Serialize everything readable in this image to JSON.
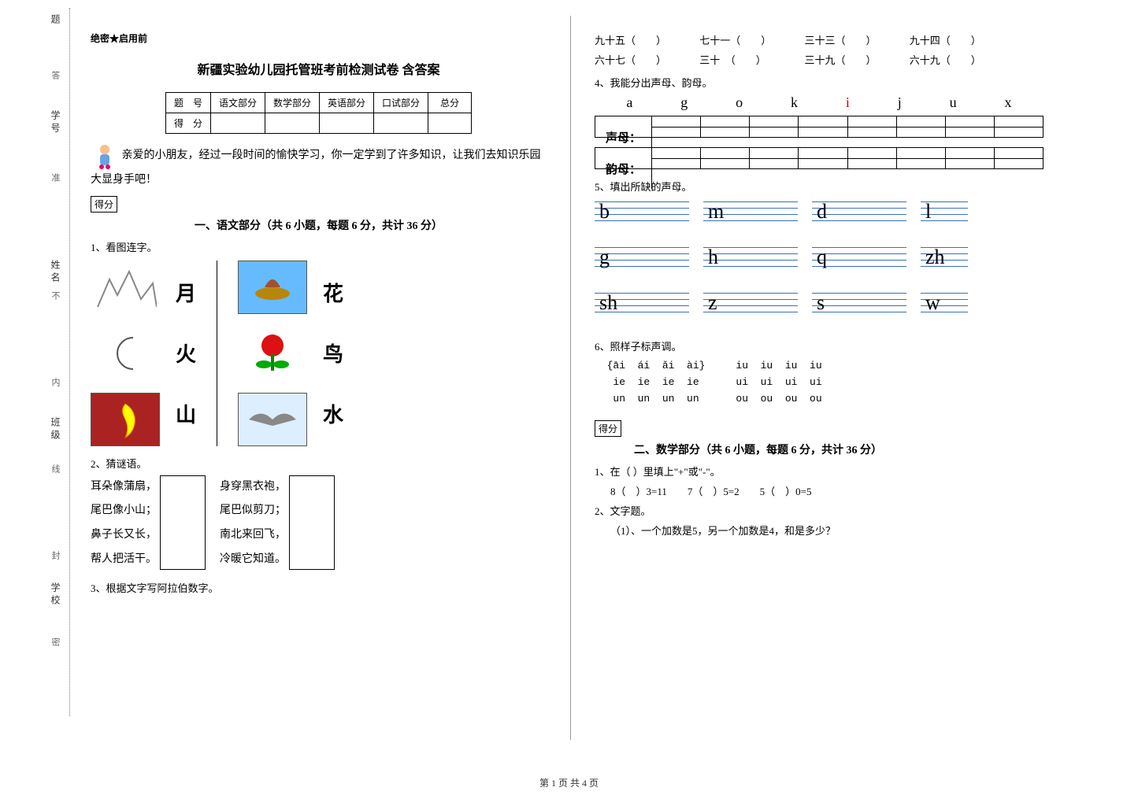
{
  "binding": {
    "labels": [
      "题",
      "答",
      "学号",
      "准",
      "姓名",
      "不",
      "内",
      "班级",
      "线",
      "封",
      "学校",
      "密"
    ]
  },
  "header": {
    "secret": "绝密★启用前",
    "title": "新疆实验幼儿园托管班考前检测试卷 含答案",
    "score_cols": [
      "题　号",
      "语文部分",
      "数学部分",
      "英语部分",
      "口试部分",
      "总分"
    ],
    "score_row2": "得　分",
    "intro": "亲爱的小朋友，经过一段时间的愉快学习，你一定学到了许多知识，让我们去知识乐园大显身手吧！",
    "defen": "得分"
  },
  "section1": {
    "head": "一、语文部分（共 6 小题，每题 6 分，共计 36 分）",
    "q1": "1、看图连字。",
    "match_chars_left": [
      "月",
      "火",
      "山"
    ],
    "match_chars_right": [
      "花",
      "鸟",
      "水"
    ],
    "q2": "2、猜谜语。",
    "riddle1": [
      "耳朵像蒲扇，",
      "尾巴像小山；",
      "鼻子长又长，",
      "帮人把活干。"
    ],
    "riddle2": [
      "身穿黑衣袍，",
      "尾巴似剪刀；",
      "南北来回飞，",
      "冷暖它知道。"
    ],
    "q3": "3、根据文字写阿拉伯数字。"
  },
  "rightcol": {
    "numbers": [
      [
        "九十五（　　）",
        "七十一（　　）",
        "三十三（　　）",
        "九十四（　　）"
      ],
      [
        "六十七（　　）",
        "三十　（　　）",
        "三十九（　　）",
        "六十九（　　）"
      ]
    ],
    "q4": "4、我能分出声母、韵母。",
    "pinyin_letters": [
      "a",
      "g",
      "o",
      "k",
      "i",
      "j",
      "u",
      "x"
    ],
    "row_shengmu": "声母：",
    "row_yunmu": "韵母：",
    "q5": "5、填出所缺的声母。",
    "fill_rows": [
      [
        "b",
        "m",
        "d",
        "l"
      ],
      [
        "g",
        "h",
        "q",
        "zh"
      ],
      [
        "sh",
        "z",
        "s",
        "w"
      ]
    ],
    "q6": "6、照样子标声调。",
    "tones": "  {āi  ái  ǎi  ài}     iu  iu  iu  iu\n   ie  ie  ie  ie      ui  ui  ui  ui\n   un  un  un  un      ou  ou  ou  ou",
    "defen": "得分",
    "section2_head": "二、数学部分（共 6 小题，每题 6 分，共计 36 分）",
    "m_q1": "1、在（ ）里填上\"+\"或\"-\"。",
    "m_eq": "8（　）3=11　　7（　）5=2　　5（　）0=5",
    "m_q2": "2、文字题。",
    "m_q2_1": "（1）、一个加数是5，另一个加数是4，和是多少？"
  },
  "footer": "第 1 页 共 4 页"
}
